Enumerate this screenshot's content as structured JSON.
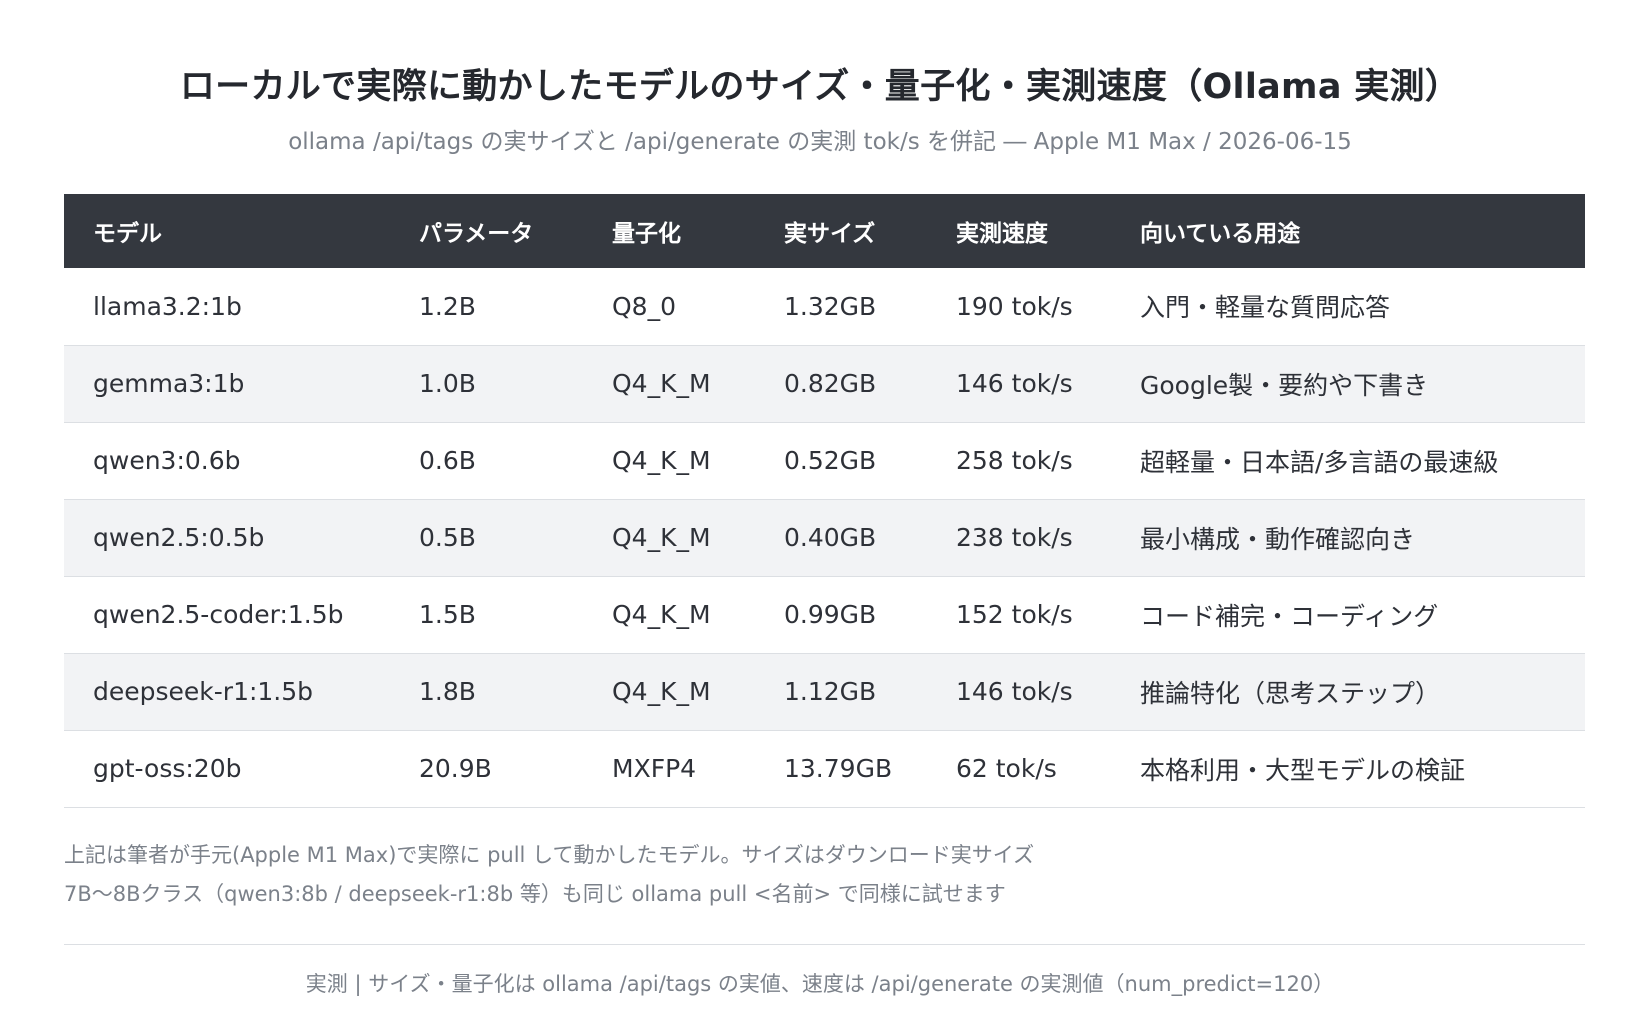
{
  "title": "ローカルで実際に動かしたモデルのサイズ・量子化・実測速度（Ollama 実測）",
  "subtitle": "ollama /api/tags の実サイズと /api/generate の実測 tok/s を併記 ― Apple M1 Max / 2026-06-15",
  "columns": [
    "モデル",
    "パラメータ",
    "量子化",
    "実サイズ",
    "実測速度",
    "向いている用途"
  ],
  "rows": [
    [
      "llama3.2:1b",
      "1.2B",
      "Q8_0",
      "1.32GB",
      "190 tok/s",
      "入門・軽量な質問応答"
    ],
    [
      "gemma3:1b",
      "1.0B",
      "Q4_K_M",
      "0.82GB",
      "146 tok/s",
      "Google製・要約や下書き"
    ],
    [
      "qwen3:0.6b",
      "0.6B",
      "Q4_K_M",
      "0.52GB",
      "258 tok/s",
      "超軽量・日本語/多言語の最速級"
    ],
    [
      "qwen2.5:0.5b",
      "0.5B",
      "Q4_K_M",
      "0.40GB",
      "238 tok/s",
      "最小構成・動作確認向き"
    ],
    [
      "qwen2.5-coder:1.5b",
      "1.5B",
      "Q4_K_M",
      "0.99GB",
      "152 tok/s",
      "コード補完・コーディング"
    ],
    [
      "deepseek-r1:1.5b",
      "1.8B",
      "Q4_K_M",
      "1.12GB",
      "146 tok/s",
      "推論特化（思考ステップ）"
    ],
    [
      "gpt-oss:20b",
      "20.9B",
      "MXFP4",
      "13.79GB",
      "62 tok/s",
      "本格利用・大型モデルの検証"
    ]
  ],
  "notes": [
    "上記は筆者が手元(Apple M1 Max)で実際に pull して動かしたモデル。サイズはダウンロード実サイズ",
    "7B〜8Bクラス（qwen3:8b / deepseek-r1:8b 等）も同じ ollama pull <名前> で同様に試せます"
  ],
  "footer": "実測 | サイズ・量子化は ollama /api/tags の実値、速度は /api/generate の実測値（num_predict=120）",
  "colors": {
    "header_bg": "#34383f",
    "stripe_bg": "#f2f3f5",
    "muted_text": "#7b818a"
  }
}
